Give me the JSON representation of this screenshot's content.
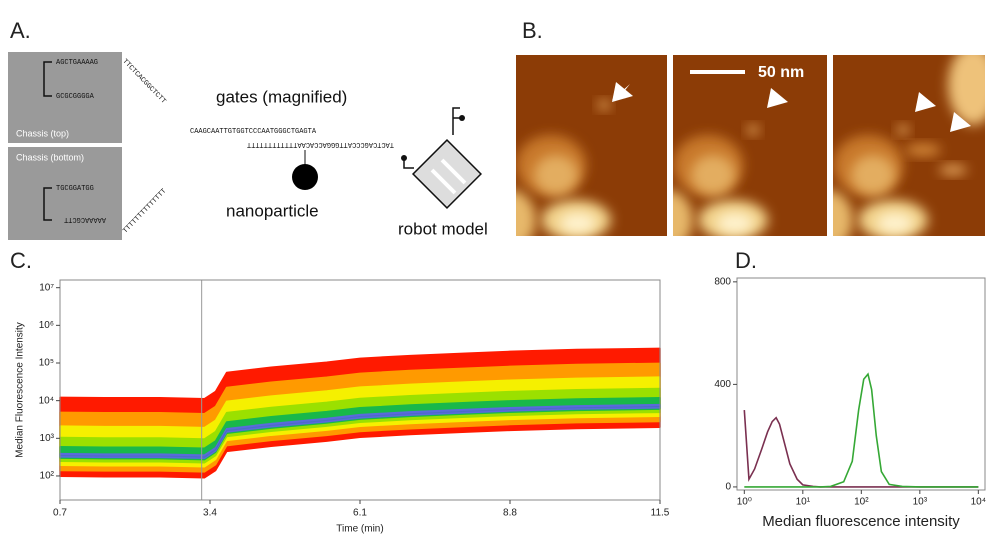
{
  "panels": {
    "a": {
      "label": "A.",
      "chassis_top": {
        "title": "Chassis (top)",
        "strands": [
          "AGCTGAAAAG",
          "GCGCGGGGA"
        ]
      },
      "chassis_bottom": {
        "title": "Chassis (bottom)",
        "strands": [
          "TGCGGATGG",
          "AAAAACGCTT"
        ]
      },
      "arm_top": "TTCTCACGGCTCTT",
      "arm_bottom": "TTTTTTTTTTTTTT",
      "gate_strands": [
        "CAAGCAATTGTGGTCCCAATGGGCTGAGTA",
        "TACTCAGCCCATTGGGACCACAATTTTTTTTTTTT"
      ],
      "gates": "gates (magnified)",
      "nanoparticle": "nanoparticle",
      "robot": "robot model"
    },
    "b": {
      "label": "B.",
      "scale_bar": "50 nm"
    }
  },
  "chart_data": [
    {
      "type": "density",
      "panel_label": "C.",
      "x_label": "Time (min)",
      "y_label": "Median Fluorescence Intensity",
      "xlim": [
        0.7,
        11.5
      ],
      "xticks": [
        0.7,
        3.4,
        6.1,
        8.8,
        11.5
      ],
      "yscale": "log",
      "ylim": [
        23,
        16000000
      ],
      "yticks": [
        {
          "value": 100,
          "label": "10²"
        },
        {
          "value": 1000,
          "label": "10³"
        },
        {
          "value": 10000,
          "label": "10⁴"
        },
        {
          "value": 100000,
          "label": "10⁵"
        },
        {
          "value": 1000000,
          "label": "10⁶"
        },
        {
          "value": 10000000,
          "label": "10⁷"
        }
      ],
      "x": [
        0.7,
        1.5,
        2.5,
        3.3,
        3.5,
        3.7,
        4.5,
        5.5,
        6.1,
        7,
        8,
        8.8,
        10,
        11.5
      ],
      "values": [
        350,
        340,
        340,
        320,
        500,
        1600,
        2200,
        3000,
        3800,
        4500,
        5200,
        5800,
        6500,
        7000
      ],
      "colors": [
        "#ff1a00",
        "#ff9a00",
        "#f5f000",
        "#9be000",
        "#19b84a",
        "#5a6adc"
      ],
      "vline": 3.25
    },
    {
      "type": "line",
      "panel_label": "D.",
      "x_label": "Median fluorescence intensity",
      "xscale": "log",
      "xlim": [
        0.75,
        13000
      ],
      "xticks": [
        {
          "value": 1,
          "label": "10⁰"
        },
        {
          "value": 10,
          "label": "10¹"
        },
        {
          "value": 100,
          "label": "10²"
        },
        {
          "value": 1000,
          "label": "10³"
        },
        {
          "value": 10000,
          "label": "10⁴"
        }
      ],
      "ylim": [
        -12,
        815
      ],
      "yticks": [
        0,
        400,
        800
      ],
      "x": [
        1,
        1.2,
        1.5,
        2,
        2.5,
        3,
        3.5,
        4,
        5,
        6,
        8,
        10,
        15,
        20,
        30,
        50,
        70,
        90,
        110,
        130,
        150,
        180,
        220,
        300,
        500,
        1000,
        10000
      ],
      "series": [
        {
          "color": "#7a3050",
          "values": [
            300,
            30,
            70,
            150,
            215,
            255,
            270,
            245,
            160,
            90,
            30,
            8,
            2,
            0,
            0,
            0,
            0,
            0,
            0,
            0,
            0,
            0,
            0,
            0,
            0,
            0,
            0
          ]
        },
        {
          "color": "#35a835",
          "values": [
            0,
            0,
            0,
            0,
            0,
            0,
            0,
            0,
            0,
            0,
            0,
            0,
            0,
            0,
            2,
            20,
            100,
            300,
            420,
            440,
            380,
            200,
            60,
            10,
            2,
            0,
            0
          ]
        }
      ]
    }
  ]
}
